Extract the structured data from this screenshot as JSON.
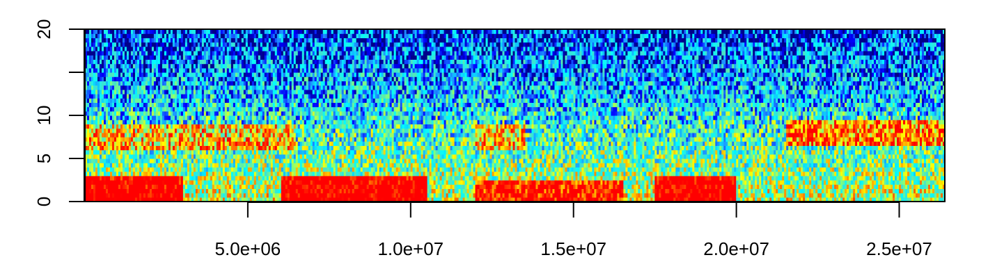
{
  "chart_data": {
    "type": "heatmap",
    "title": "",
    "xlabel": "",
    "ylabel": "",
    "xlim": [
      0,
      26400000
    ],
    "ylim": [
      0,
      20
    ],
    "x_ticks": [
      {
        "value": 5000000,
        "label": "5.0e+06"
      },
      {
        "value": 10000000,
        "label": "1.0e+07"
      },
      {
        "value": 15000000,
        "label": "1.5e+07"
      },
      {
        "value": 20000000,
        "label": "2.0e+07"
      },
      {
        "value": 25000000,
        "label": "2.5e+07"
      }
    ],
    "y_ticks": [
      {
        "value": 0,
        "label": "0"
      },
      {
        "value": 5,
        "label": "5"
      },
      {
        "value": 10,
        "label": "10"
      },
      {
        "value": 15,
        "label": ""
      },
      {
        "value": 20,
        "label": "20"
      }
    ],
    "colormap": [
      "#00008b",
      "#0000ff",
      "#1e90ff",
      "#00ffff",
      "#40e0d0",
      "#7fff7f",
      "#ffff00",
      "#ffa500",
      "#ff4500",
      "#ff0000"
    ],
    "description_bands": [
      {
        "x_start": 0,
        "x_end": 3000000,
        "y_start": 0,
        "y_end": 3,
        "intensity": "high"
      },
      {
        "x_start": 6000000,
        "x_end": 10500000,
        "y_start": 0,
        "y_end": 3,
        "intensity": "high"
      },
      {
        "x_start": 12000000,
        "x_end": 16500000,
        "y_start": 0,
        "y_end": 2.5,
        "intensity": "medium-high"
      },
      {
        "x_start": 17500000,
        "x_end": 20000000,
        "y_start": 0,
        "y_end": 3,
        "intensity": "high"
      },
      {
        "x_start": 0,
        "x_end": 6500000,
        "y_start": 6,
        "y_end": 9,
        "intensity": "medium"
      },
      {
        "x_start": 12000000,
        "x_end": 13500000,
        "y_start": 6,
        "y_end": 9,
        "intensity": "medium"
      },
      {
        "x_start": 21500000,
        "x_end": 26400000,
        "y_start": 6.5,
        "y_end": 9.5,
        "intensity": "medium-high"
      }
    ]
  }
}
